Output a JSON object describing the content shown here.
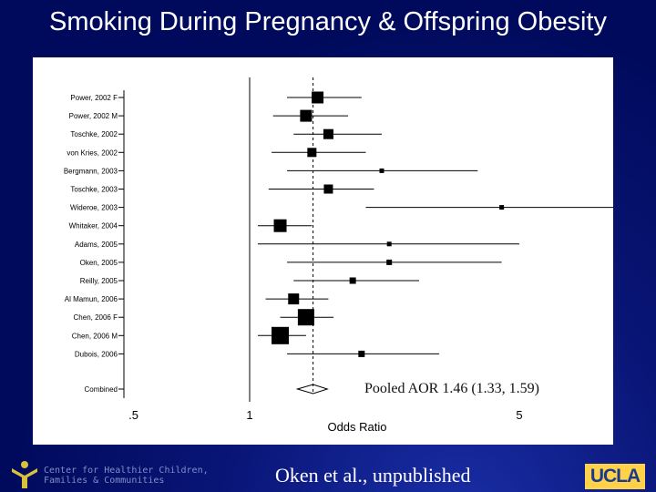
{
  "slide": {
    "title": "Smoking During Pregnancy & Offspring Obesity",
    "citation": "Oken et al., unpublished",
    "footer_org_line1": "Center for Healthier Children,",
    "footer_org_line2": "Families & Communities",
    "ucla_logo_text": "UCLA",
    "pooled_label": "Pooled AOR 1.46 (1.33, 1.59)",
    "background_color": "#000a5c",
    "plot_background": "#ffffff",
    "logo_accent_color": "#ffd24a",
    "icon": "figure-logo-icon"
  },
  "chart_data": {
    "type": "forest",
    "xlabel": "Odds Ratio",
    "x_scale": "log",
    "xlim": [
      0.4,
      6.3
    ],
    "xticks": [
      0.5,
      1,
      5
    ],
    "xtick_labels": [
      ".5",
      "1",
      "5"
    ],
    "null_line": 1,
    "pooled_line": 1.46,
    "studies": [
      {
        "label": "Power, 2002 F",
        "or": 1.5,
        "lo": 1.25,
        "hi": 1.95,
        "weight": 13
      },
      {
        "label": "Power, 2002 M",
        "or": 1.4,
        "lo": 1.15,
        "hi": 1.8,
        "weight": 13
      },
      {
        "label": "Toschke, 2002",
        "or": 1.6,
        "lo": 1.3,
        "hi": 2.2,
        "weight": 11
      },
      {
        "label": "von Kries, 2002",
        "or": 1.45,
        "lo": 1.14,
        "hi": 2.0,
        "weight": 10
      },
      {
        "label": "Bergmann, 2003",
        "or": 2.2,
        "lo": 1.25,
        "hi": 3.9,
        "weight": 5
      },
      {
        "label": "Toschke, 2003",
        "or": 1.6,
        "lo": 1.12,
        "hi": 2.1,
        "weight": 10
      },
      {
        "label": "Wideroe, 2003",
        "or": 4.5,
        "lo": 2.0,
        "hi": 9.7,
        "weight": 5
      },
      {
        "label": "Whitaker, 2004",
        "or": 1.2,
        "lo": 1.05,
        "hi": 1.45,
        "weight": 14
      },
      {
        "label": "Adams, 2005",
        "or": 2.3,
        "lo": 1.05,
        "hi": 5.0,
        "weight": 5
      },
      {
        "label": "Oken, 2005",
        "or": 2.3,
        "lo": 1.25,
        "hi": 4.5,
        "weight": 6
      },
      {
        "label": "Reilly, 2005",
        "or": 1.85,
        "lo": 1.3,
        "hi": 2.75,
        "weight": 7
      },
      {
        "label": "Al Mamun, 2006",
        "or": 1.3,
        "lo": 1.1,
        "hi": 1.6,
        "weight": 12
      },
      {
        "label": "Chen, 2006 F",
        "or": 1.4,
        "lo": 1.2,
        "hi": 1.65,
        "weight": 18
      },
      {
        "label": "Chen, 2006 M",
        "or": 1.2,
        "lo": 1.05,
        "hi": 1.4,
        "weight": 19
      },
      {
        "label": "Dubois, 2006",
        "or": 1.95,
        "lo": 1.25,
        "hi": 3.1,
        "weight": 7
      }
    ],
    "combined": {
      "label": "Combined",
      "or": 1.46,
      "lo": 1.33,
      "hi": 1.59
    }
  }
}
